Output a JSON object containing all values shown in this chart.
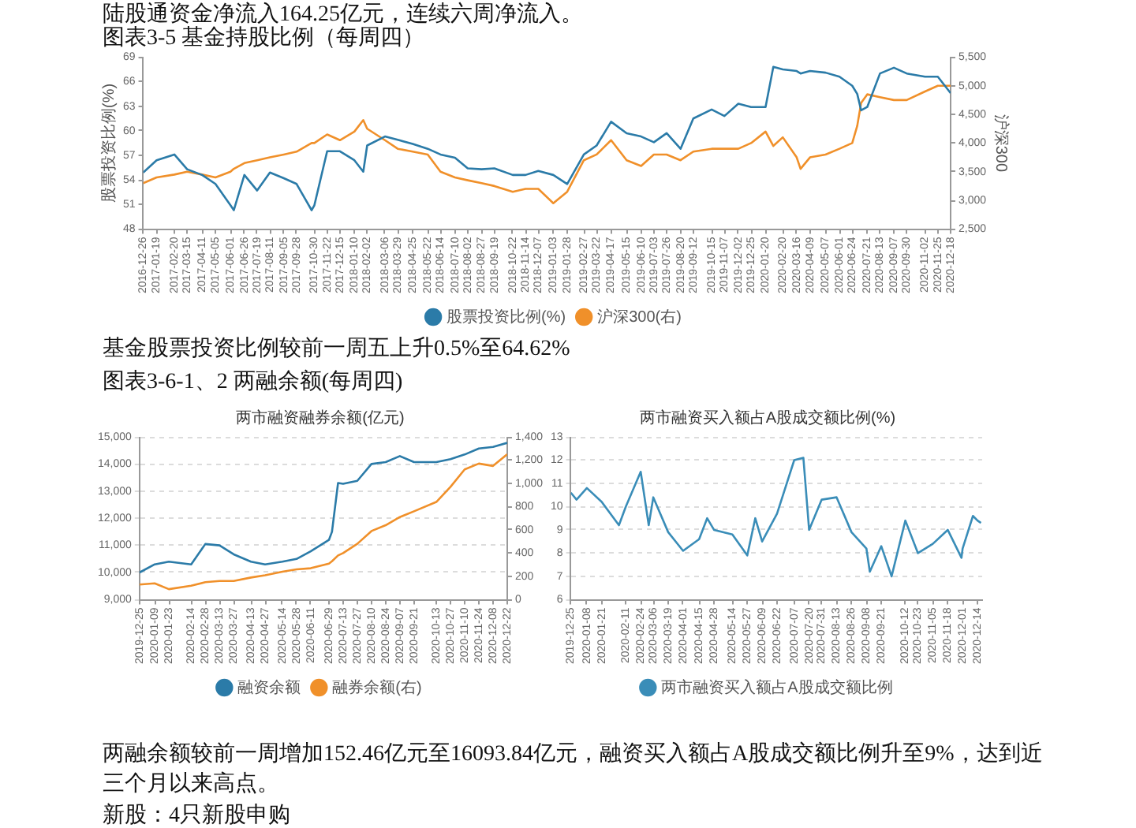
{
  "chart_data": [
    {
      "type": "line",
      "title": "图表3-5 基金持股比例（每周四）",
      "ylabel": "股票投资比例(%)",
      "y2label": "沪深300",
      "annotations": [
        "陆股通资金净流入164.25亿元，连续六周净流入。",
        "基金股票投资比例较前一周五上升0.5%至64.62%"
      ],
      "x": [
        "2016-12-26",
        "2017-01-19",
        "2017-02-20",
        "2017-03-15",
        "2017-04-11",
        "2017-05-05",
        "2017-06-01",
        "2017-06-07",
        "2017-06-26",
        "2017-07-19",
        "2017-08-11",
        "2017-09-05",
        "2017-09-28",
        "2017-10-25",
        "2017-10-30",
        "2017-11-22",
        "2017-12-15",
        "2018-01-10",
        "2018-01-26",
        "2018-02-02",
        "2018-03-06",
        "2018-03-29",
        "2018-04-25",
        "2018-05-22",
        "2018-06-14",
        "2018-07-10",
        "2018-08-02",
        "2018-08-27",
        "2018-09-19",
        "2018-10-22",
        "2018-11-14",
        "2018-12-07",
        "2019-01-03",
        "2019-01-28",
        "2019-02-27",
        "2019-03-22",
        "2019-04-17",
        "2019-05-15",
        "2019-06-10",
        "2019-07-03",
        "2019-07-26",
        "2019-08-20",
        "2019-09-12",
        "2019-10-15",
        "2019-11-07",
        "2019-12-02",
        "2019-12-25",
        "2020-01-20",
        "2020-02-03",
        "2020-02-20",
        "2020-03-16",
        "2020-03-23",
        "2020-04-09",
        "2020-05-07",
        "2020-06-01",
        "2020-06-24",
        "2020-07-03",
        "2020-07-10",
        "2020-07-21",
        "2020-08-13",
        "2020-09-07",
        "2020-09-30",
        "2020-11-02",
        "2020-11-25",
        "2020-12-18"
      ],
      "series": [
        {
          "name": "股票投资比例(%)",
          "color": "#2b7ba8",
          "values": [
            54.9,
            56.4,
            57.1,
            55.3,
            54.6,
            53.5,
            50.9,
            50.3,
            54.6,
            52.7,
            54.9,
            54.2,
            53.5,
            50.3,
            50.9,
            57.5,
            57.5,
            56.4,
            55.0,
            58.2,
            59.3,
            58.9,
            58.4,
            57.8,
            57.1,
            56.7,
            55.4,
            55.3,
            55.4,
            54.6,
            54.6,
            55.1,
            54.6,
            53.5,
            57.1,
            58.2,
            61.1,
            59.7,
            59.3,
            58.6,
            59.7,
            57.8,
            61.5,
            62.6,
            61.8,
            63.3,
            62.9,
            62.9,
            67.8,
            67.5,
            67.3,
            67.0,
            67.3,
            67.1,
            66.6,
            65.5,
            64.5,
            62.5,
            62.9,
            67.0,
            67.7,
            67.0,
            66.6,
            66.6,
            64.6
          ]
        },
        {
          "name": "沪深300(右)",
          "color": "#f0902a",
          "axis": "y2",
          "values": [
            3300,
            3400,
            3450,
            3500,
            3450,
            3400,
            3500,
            3550,
            3650,
            3700,
            3750,
            3800,
            3850,
            4000,
            4000,
            4150,
            4050,
            4200,
            4400,
            4250,
            4050,
            3900,
            3850,
            3800,
            3500,
            3400,
            3350,
            3300,
            3250,
            3150,
            3200,
            3200,
            2950,
            3150,
            3700,
            3800,
            4050,
            3700,
            3600,
            3800,
            3800,
            3700,
            3850,
            3900,
            3900,
            3900,
            4000,
            4200,
            3950,
            4100,
            3750,
            3550,
            3750,
            3800,
            3900,
            4000,
            4300,
            4700,
            4850,
            4800,
            4750,
            4750,
            4900,
            5000,
            5000
          ]
        }
      ],
      "xlim": [
        "2016-12-26",
        "2020-12-18"
      ],
      "xticks": [
        "2016-12-26",
        "2017-01-19",
        "2017-02-20",
        "2017-03-15",
        "2017-04-11",
        "2017-05-05",
        "2017-06-01",
        "2017-06-26",
        "2017-07-19",
        "2017-08-11",
        "2017-09-05",
        "2017-09-28",
        "2017-10-30",
        "2017-11-22",
        "2017-12-15",
        "2018-01-10",
        "2018-02-02",
        "2018-03-06",
        "2018-03-29",
        "2018-04-25",
        "2018-05-22",
        "2018-06-14",
        "2018-07-10",
        "2018-08-02",
        "2018-08-27",
        "2018-09-19",
        "2018-10-22",
        "2018-11-14",
        "2018-12-07",
        "2019-01-03",
        "2019-01-28",
        "2019-02-27",
        "2019-03-22",
        "2019-04-17",
        "2019-05-15",
        "2019-06-10",
        "2019-07-03",
        "2019-07-26",
        "2019-08-20",
        "2019-09-12",
        "2019-10-15",
        "2019-11-07",
        "2019-12-02",
        "2019-12-25",
        "2020-01-20",
        "2020-02-20",
        "2020-03-16",
        "2020-04-09",
        "2020-05-07",
        "2020-06-01",
        "2020-06-24",
        "2020-07-21",
        "2020-08-13",
        "2020-09-07",
        "2020-09-30",
        "2020-11-02",
        "2020-11-25",
        "2020-12-18"
      ],
      "ylim": [
        48,
        69
      ],
      "yticks": [
        48,
        51,
        54,
        57,
        60,
        63,
        66,
        69
      ],
      "y2lim": [
        2500,
        5500
      ],
      "y2ticks": [
        {
          "value": 2500,
          "label": "2,500"
        },
        {
          "value": 3000,
          "label": "3,000"
        },
        {
          "value": 3500,
          "label": "3,500"
        },
        {
          "value": 4000,
          "label": "4,000"
        },
        {
          "value": 4500,
          "label": "4,500"
        },
        {
          "value": 5000,
          "label": "5,000"
        },
        {
          "value": 5500,
          "label": "5,500"
        }
      ],
      "grid": false,
      "legend": "bottom",
      "marker": "none"
    },
    {
      "type": "line",
      "title": "两市融资融券余额(亿元)",
      "annotations": [
        "图表3-6-1、2 两融余额(每周四)"
      ],
      "x": [
        "2019-12-25",
        "2020-01-09",
        "2020-01-23",
        "2020-02-14",
        "2020-02-28",
        "2020-03-13",
        "2020-03-27",
        "2020-04-13",
        "2020-04-27",
        "2020-05-14",
        "2020-05-28",
        "2020-06-11",
        "2020-06-29",
        "2020-07-02",
        "2020-07-08",
        "2020-07-13",
        "2020-07-27",
        "2020-08-10",
        "2020-08-24",
        "2020-09-07",
        "2020-09-21",
        "2020-10-13",
        "2020-10-27",
        "2020-11-10",
        "2020-11-24",
        "2020-12-08",
        "2020-12-22"
      ],
      "series": [
        {
          "name": "融资余额",
          "color": "#2b7ba8",
          "values": [
            10000,
            10300,
            10400,
            10300,
            11050,
            11000,
            10670,
            10400,
            10300,
            10400,
            10500,
            10780,
            11200,
            11500,
            13300,
            13270,
            13380,
            14000,
            14070,
            14290,
            14070,
            14070,
            14180,
            14350,
            14570,
            14630,
            14780
          ]
        },
        {
          "name": "融券余额(右)",
          "color": "#f0902a",
          "axis": "y2",
          "values": [
            130,
            140,
            90,
            120,
            150,
            160,
            160,
            190,
            210,
            240,
            260,
            270,
            310,
            330,
            380,
            400,
            480,
            590,
            640,
            710,
            760,
            840,
            970,
            1120,
            1170,
            1150,
            1250
          ]
        }
      ],
      "xlim": [
        "2019-12-25",
        "2020-12-22"
      ],
      "xticks": [
        "2019-12-25",
        "2020-01-09",
        "2020-01-23",
        "2020-02-14",
        "2020-02-28",
        "2020-03-13",
        "2020-03-27",
        "2020-04-13",
        "2020-04-27",
        "2020-05-14",
        "2020-05-28",
        "2020-06-11",
        "2020-06-29",
        "2020-07-13",
        "2020-07-27",
        "2020-08-10",
        "2020-08-24",
        "2020-09-07",
        "2020-09-21",
        "2020-10-13",
        "2020-10-27",
        "2020-11-10",
        "2020-11-24",
        "2020-12-08",
        "2020-12-22"
      ],
      "ylim": [
        9000,
        15000
      ],
      "yticks": [
        {
          "value": 9000,
          "label": "9,000"
        },
        {
          "value": 10000,
          "label": "10,000"
        },
        {
          "value": 11000,
          "label": "11,000"
        },
        {
          "value": 12000,
          "label": "12,000"
        },
        {
          "value": 13000,
          "label": "13,000"
        },
        {
          "value": 14000,
          "label": "14,000"
        },
        {
          "value": 15000,
          "label": "15,000"
        }
      ],
      "y2lim": [
        0,
        1400
      ],
      "y2ticks": [
        0,
        200,
        400,
        600,
        800,
        {
          "value": 1000,
          "label": "1,000"
        },
        {
          "value": 1200,
          "label": "1,200"
        },
        {
          "value": 1400,
          "label": "1,400"
        }
      ],
      "grid": "y",
      "legend": "bottom",
      "marker": "none"
    },
    {
      "type": "line",
      "title": "两市融资买入额占A股成交额比例(%)",
      "annotations": [
        "两融余额较前一周增加152.46亿元至16093.84亿元，融资买入额占A股成交额比例升至9%，达到近三个月以来高点。",
        "新股：4只新股申购"
      ],
      "x": [
        "2019-12-25",
        "2019-12-30",
        "2020-01-08",
        "2020-01-21",
        "2020-02-05",
        "2020-02-11",
        "2020-02-24",
        "2020-03-02",
        "2020-03-06",
        "2020-03-19",
        "2020-04-01",
        "2020-04-15",
        "2020-04-22",
        "2020-04-28",
        "2020-05-14",
        "2020-05-27",
        "2020-06-03",
        "2020-06-09",
        "2020-06-22",
        "2020-07-07",
        "2020-07-15",
        "2020-07-20",
        "2020-07-31",
        "2020-08-13",
        "2020-08-26",
        "2020-09-08",
        "2020-09-11",
        "2020-09-21",
        "2020-09-30",
        "2020-10-12",
        "2020-10-23",
        "2020-11-05",
        "2020-11-18",
        "2020-11-30",
        "2020-12-01",
        "2020-12-10",
        "2020-12-14",
        "2020-12-17"
      ],
      "series": [
        {
          "name": "两市融资买入额占A股成交额比例",
          "color": "#3a8db8",
          "values": [
            10.6,
            10.3,
            10.8,
            10.2,
            9.2,
            10.0,
            11.5,
            9.2,
            10.4,
            8.9,
            8.1,
            8.6,
            9.5,
            9.0,
            8.8,
            7.9,
            9.5,
            8.5,
            9.7,
            12.0,
            12.1,
            9.0,
            10.3,
            10.4,
            8.9,
            8.2,
            7.2,
            8.3,
            7.0,
            9.4,
            8.0,
            8.4,
            9.0,
            7.8,
            8.2,
            9.6,
            9.4,
            9.3
          ]
        }
      ],
      "xlim": [
        "2019-12-25",
        "2020-12-18"
      ],
      "xticks": [
        "2019-12-25",
        "2020-01-08",
        "2020-01-21",
        "2020-02-11",
        "2020-02-24",
        "2020-03-06",
        "2020-03-19",
        "2020-04-01",
        "2020-04-15",
        "2020-04-28",
        "2020-05-14",
        "2020-05-27",
        "2020-06-09",
        "2020-06-22",
        "2020-07-07",
        "2020-07-20",
        "2020-07-31",
        "2020-08-13",
        "2020-08-26",
        "2020-09-08",
        "2020-09-21",
        "2020-10-12",
        "2020-10-23",
        "2020-11-05",
        "2020-11-18",
        "2020-12-01",
        "2020-12-14"
      ],
      "ylim": [
        6,
        13
      ],
      "yticks": [
        6,
        7,
        8,
        9,
        10,
        11,
        12,
        13
      ],
      "grid": "y",
      "legend": "bottom",
      "marker": "none"
    }
  ]
}
